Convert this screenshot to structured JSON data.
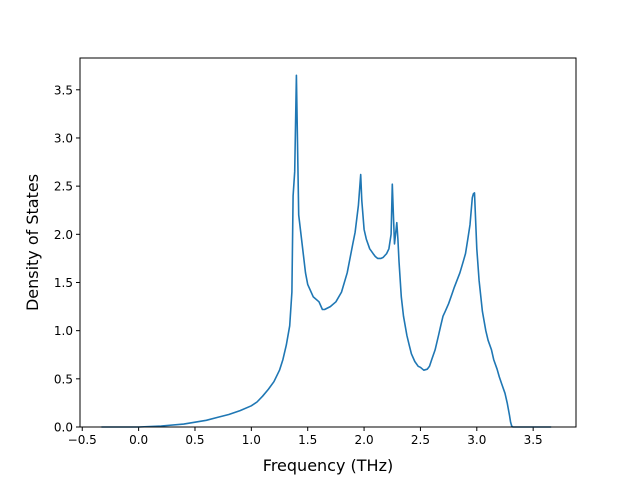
{
  "chart_data": {
    "type": "line",
    "title": "",
    "xlabel": "Frequency (THz)",
    "ylabel": "Density of States",
    "xlim": [
      -0.52,
      3.88
    ],
    "ylim": [
      0.0,
      3.83
    ],
    "xticks": [
      -0.5,
      0.0,
      0.5,
      1.0,
      1.5,
      2.0,
      2.5,
      3.0,
      3.5
    ],
    "xtick_labels": [
      "−0.5",
      "0.0",
      "0.5",
      "1.0",
      "1.5",
      "2.0",
      "2.5",
      "3.0",
      "3.5"
    ],
    "yticks": [
      0.0,
      0.5,
      1.0,
      1.5,
      2.0,
      2.5,
      3.0,
      3.5
    ],
    "ytick_labels": [
      "0.0",
      "0.5",
      "1.0",
      "1.5",
      "2.0",
      "2.5",
      "3.0",
      "3.5"
    ],
    "grid": false,
    "series": [
      {
        "color": "#1f77b4",
        "x": [
          -0.33,
          0.0,
          0.2,
          0.4,
          0.5,
          0.6,
          0.7,
          0.8,
          0.9,
          1.0,
          1.05,
          1.1,
          1.15,
          1.2,
          1.25,
          1.28,
          1.31,
          1.34,
          1.36,
          1.37,
          1.385,
          1.4,
          1.42,
          1.45,
          1.48,
          1.5,
          1.55,
          1.6,
          1.63,
          1.65,
          1.7,
          1.75,
          1.8,
          1.85,
          1.9,
          1.92,
          1.95,
          1.97,
          1.98,
          2.0,
          2.02,
          2.05,
          2.08,
          2.1,
          2.12,
          2.15,
          2.17,
          2.2,
          2.22,
          2.24,
          2.25,
          2.26,
          2.27,
          2.29,
          2.3,
          2.31,
          2.33,
          2.35,
          2.38,
          2.4,
          2.42,
          2.45,
          2.48,
          2.5,
          2.53,
          2.56,
          2.58,
          2.6,
          2.63,
          2.66,
          2.68,
          2.7,
          2.72,
          2.75,
          2.78,
          2.8,
          2.85,
          2.88,
          2.9,
          2.92,
          2.94,
          2.96,
          2.97,
          2.98,
          3.0,
          3.02,
          3.05,
          3.08,
          3.1,
          3.13,
          3.15,
          3.18,
          3.2,
          3.22,
          3.25,
          3.27,
          3.29,
          3.3,
          3.31,
          3.32,
          3.35,
          3.5,
          3.66
        ],
        "y": [
          0.0,
          0.0,
          0.01,
          0.03,
          0.05,
          0.07,
          0.1,
          0.13,
          0.17,
          0.22,
          0.26,
          0.32,
          0.39,
          0.47,
          0.59,
          0.7,
          0.85,
          1.05,
          1.4,
          2.4,
          2.65,
          3.65,
          2.2,
          1.9,
          1.6,
          1.48,
          1.35,
          1.3,
          1.22,
          1.22,
          1.25,
          1.3,
          1.4,
          1.6,
          1.9,
          2.02,
          2.3,
          2.62,
          2.35,
          2.05,
          1.95,
          1.85,
          1.8,
          1.77,
          1.75,
          1.75,
          1.76,
          1.8,
          1.85,
          2.0,
          2.52,
          2.2,
          1.9,
          2.12,
          1.95,
          1.72,
          1.35,
          1.15,
          0.95,
          0.85,
          0.76,
          0.68,
          0.63,
          0.62,
          0.59,
          0.6,
          0.63,
          0.7,
          0.8,
          0.95,
          1.05,
          1.15,
          1.2,
          1.28,
          1.38,
          1.45,
          1.6,
          1.72,
          1.8,
          1.95,
          2.1,
          2.38,
          2.42,
          2.43,
          1.85,
          1.52,
          1.2,
          1.0,
          0.9,
          0.8,
          0.7,
          0.6,
          0.52,
          0.45,
          0.35,
          0.25,
          0.12,
          0.05,
          0.01,
          0.0,
          0.0,
          0.0,
          0.0
        ]
      }
    ]
  }
}
